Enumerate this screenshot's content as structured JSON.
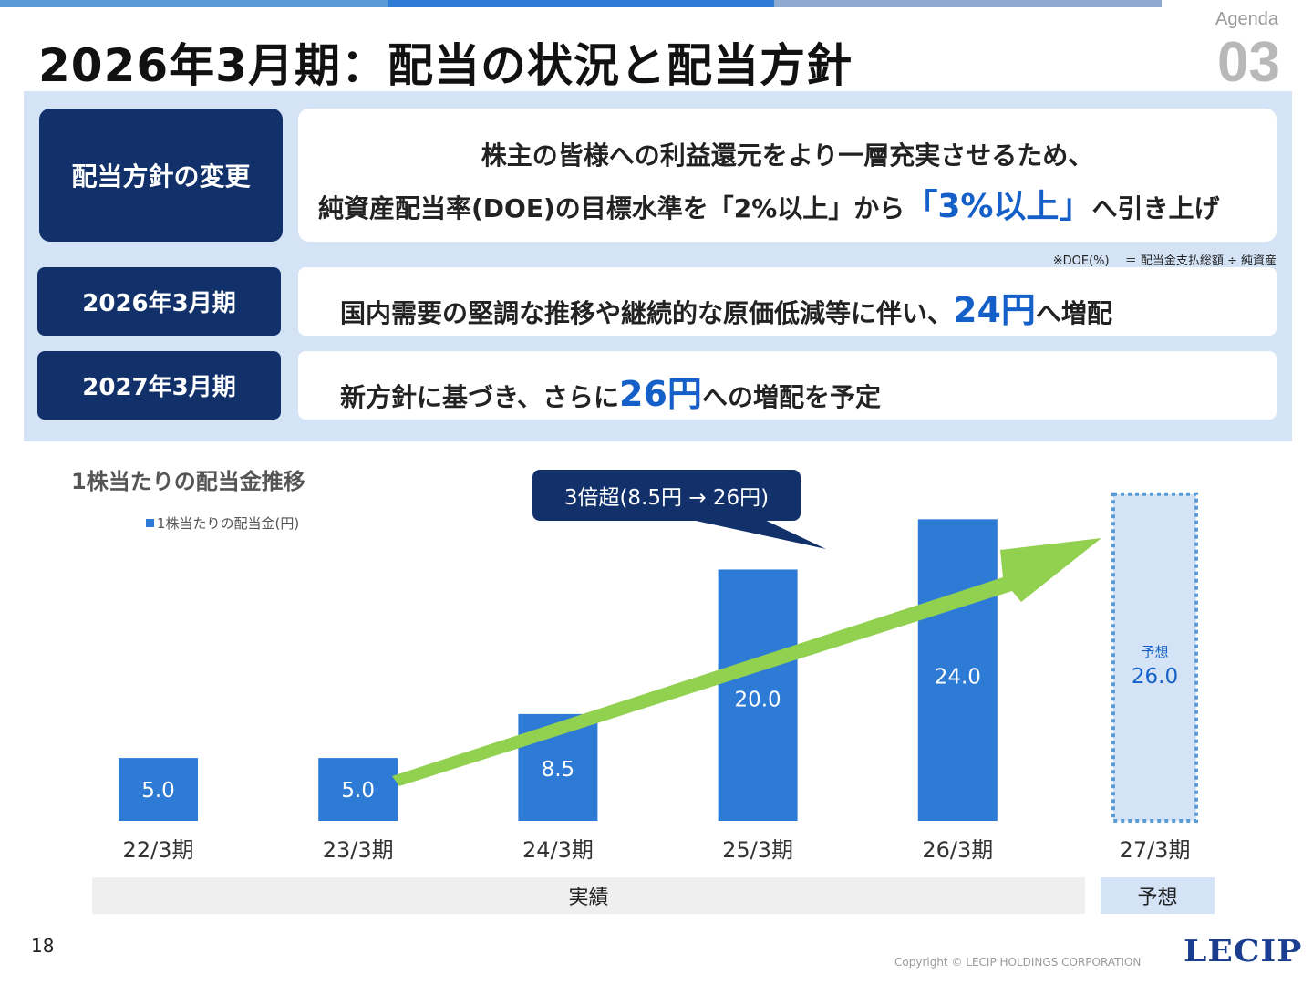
{
  "header": {
    "title": "2026年3月期：配当の状況と配当方針",
    "agenda_label": "Agenda",
    "agenda_number": "03",
    "bar_colors": [
      "#5b9bd5",
      "#2e7bd6",
      "#8faad0"
    ]
  },
  "policy": {
    "change_label": "配当方針の変更",
    "change_line1": "株主の皆様への利益還元をより一層充実させるため、",
    "change_line2_prefix": "純資産配当率(DOE)の目標水準を「2%以上」から",
    "change_line2_highlight": "「3%以上」",
    "change_line2_suffix": "へ引き上げ",
    "doe_note": "※DOE(%)　 ＝ 配当金支払総額 ÷ 純資産",
    "fy2026_label": "2026年3月期",
    "fy2026_prefix": "国内需要の堅調な推移や継続的な原価低減等に伴い、",
    "fy2026_highlight": "24円",
    "fy2026_suffix": "へ増配",
    "fy2027_label": "2027年3月期",
    "fy2027_prefix": "新方針に基づき、さらに",
    "fy2027_highlight": "26円",
    "fy2027_suffix": "への増配を予定"
  },
  "callout": "3倍超(8.5円 → 26円)",
  "bands": {
    "actual": "実績",
    "forecast": "予想"
  },
  "footer": {
    "page_number": "18",
    "copyright": "Copyright © LECIP HOLDINGS CORPORATION",
    "logo": "LECIP"
  },
  "colors": {
    "navy": "#12316b",
    "bar": "#2e7bd6",
    "forecast_fill": "#d4e3f5",
    "forecast_border": "#5b9bd5",
    "arrow": "#92d050",
    "highlight": "#1560c8"
  },
  "chart_data": {
    "type": "bar",
    "title": "1株当たりの配当金推移",
    "legend": [
      "1株当たりの配当金(円)"
    ],
    "categories": [
      "22/3期",
      "23/3期",
      "24/3期",
      "25/3期",
      "26/3期",
      "27/3期"
    ],
    "series": [
      {
        "name": "1株当たりの配当金(円)",
        "values": [
          5.0,
          5.0,
          8.5,
          20.0,
          24.0,
          26.0
        ],
        "labels": [
          "5.0",
          "5.0",
          "8.5",
          "20.0",
          "24.0",
          "26.0"
        ]
      }
    ],
    "forecast_index": 5,
    "forecast_tag": "予想",
    "ylim": [
      0,
      27
    ],
    "grid": false,
    "legend_position": "top-left"
  }
}
